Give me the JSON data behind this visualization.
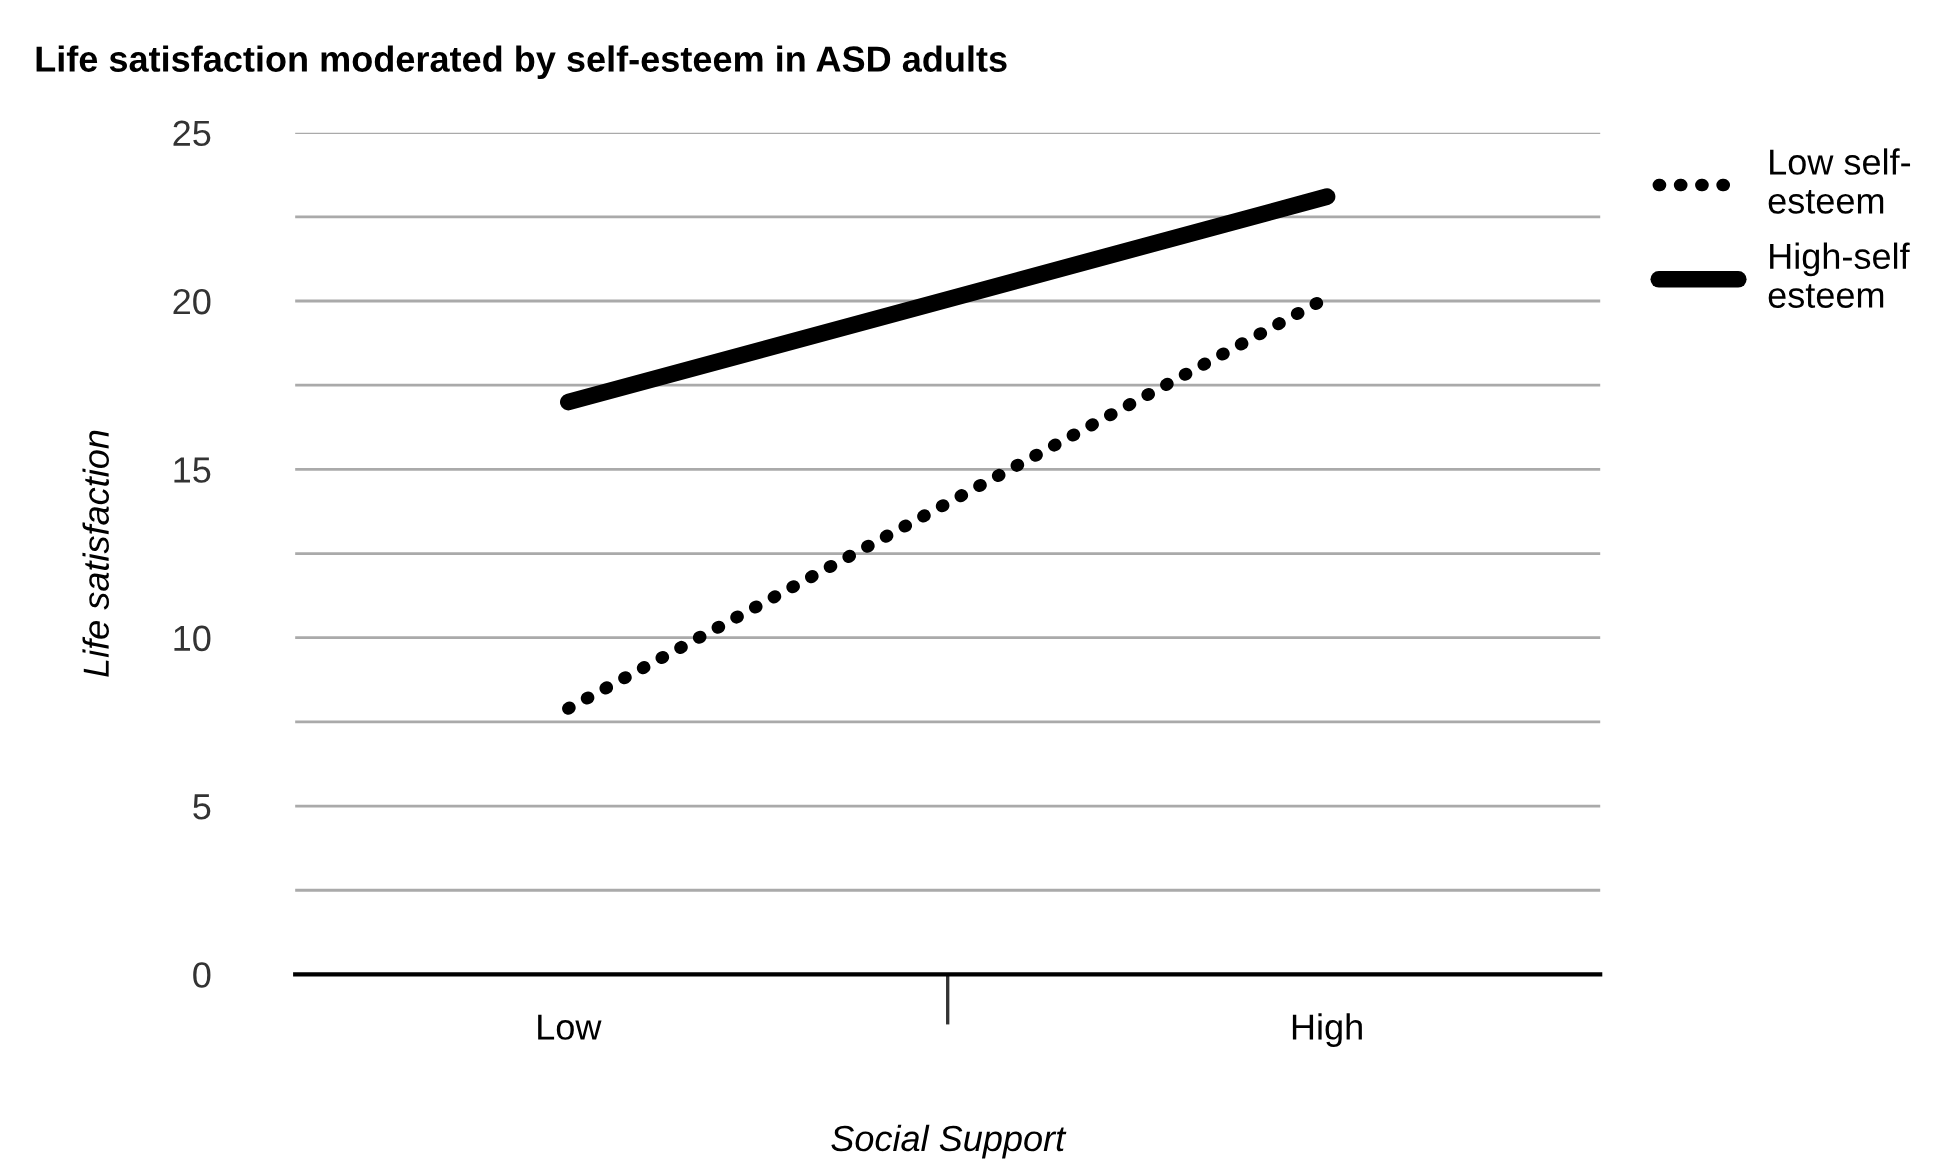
{
  "chart_data": {
    "type": "line",
    "title": "Life satisfaction moderated by self-esteem in ASD adults",
    "xlabel": "Social Support",
    "ylabel": "Life satisfaction",
    "categories": [
      "Low",
      "High"
    ],
    "series": [
      {
        "name": "Low self-\nesteem",
        "color": "#000000",
        "values": [
          7.9,
          20.1
        ],
        "line_style": "dotted"
      },
      {
        "name": "High-self\nesteem",
        "color": "#000000",
        "values": [
          17,
          23.1
        ],
        "line_style": "solid"
      }
    ],
    "ylim": [
      0,
      25
    ],
    "yticks": [
      0,
      {
        "value": 2.5,
        "label": null
      },
      5,
      {
        "value": 7.5,
        "label": null
      },
      10,
      {
        "value": 12.5,
        "label": null
      },
      15,
      {
        "value": 17.5,
        "label": null
      },
      20,
      {
        "value": 22.5,
        "label": null
      },
      25
    ],
    "grid": "y",
    "legend": "top right",
    "marker": "none"
  }
}
